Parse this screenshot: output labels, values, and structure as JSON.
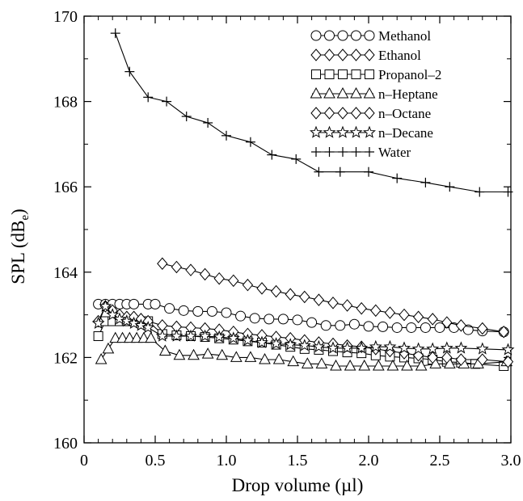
{
  "chart_data": {
    "type": "line",
    "title": "",
    "xlabel": "Drop volume (µl)",
    "ylabel_main": "SPL (dB",
    "ylabel_sub": "e",
    "ylabel_close": ")",
    "xlim": [
      0,
      3.0
    ],
    "ylim": [
      160,
      170
    ],
    "x_ticks": [
      0,
      0.5,
      1.0,
      1.5,
      2.0,
      2.5,
      3.0
    ],
    "x_tick_labels": [
      "0",
      "0.5",
      "1.0",
      "1.5",
      "2.0",
      "2.5",
      "3.0"
    ],
    "y_ticks": [
      160,
      162,
      164,
      166,
      168,
      170
    ],
    "y_tick_labels": [
      "160",
      "162",
      "164",
      "166",
      "168",
      "170"
    ],
    "grid": false,
    "legend_position": "top-right",
    "series": [
      {
        "name": "Methanol",
        "marker": "circle",
        "x": [
          0.1,
          0.15,
          0.2,
          0.25,
          0.3,
          0.35,
          0.45,
          0.5,
          0.6,
          0.7,
          0.8,
          0.9,
          1.0,
          1.1,
          1.2,
          1.3,
          1.4,
          1.5,
          1.6,
          1.7,
          1.8,
          1.9,
          2.0,
          2.1,
          2.2,
          2.3,
          2.4,
          2.5,
          2.6,
          2.7,
          2.8,
          2.95
        ],
        "y": [
          163.25,
          163.25,
          163.25,
          163.25,
          163.25,
          163.25,
          163.25,
          163.25,
          163.15,
          163.1,
          163.08,
          163.08,
          163.05,
          162.97,
          162.92,
          162.9,
          162.9,
          162.88,
          162.82,
          162.75,
          162.75,
          162.78,
          162.73,
          162.72,
          162.7,
          162.7,
          162.7,
          162.7,
          162.7,
          162.65,
          162.62,
          162.6
        ]
      },
      {
        "name": "Ethanol",
        "marker": "diamond",
        "x": [
          0.55,
          0.65,
          0.75,
          0.85,
          0.95,
          1.05,
          1.15,
          1.25,
          1.35,
          1.45,
          1.55,
          1.65,
          1.75,
          1.85,
          1.95,
          2.05,
          2.15,
          2.25,
          2.35,
          2.45,
          2.55,
          2.65,
          2.8,
          2.95
        ],
        "y": [
          164.2,
          164.12,
          164.05,
          163.95,
          163.85,
          163.8,
          163.7,
          163.62,
          163.55,
          163.48,
          163.42,
          163.35,
          163.28,
          163.22,
          163.15,
          163.1,
          163.05,
          163.0,
          162.95,
          162.9,
          162.82,
          162.75,
          162.68,
          162.6
        ]
      },
      {
        "name": "Propanol–2",
        "marker": "square",
        "x": [
          0.1,
          0.15,
          0.2,
          0.25,
          0.3,
          0.35,
          0.4,
          0.45,
          0.55,
          0.65,
          0.75,
          0.85,
          0.95,
          1.05,
          1.15,
          1.25,
          1.35,
          1.45,
          1.55,
          1.65,
          1.75,
          1.85,
          1.95,
          2.05,
          2.15,
          2.25,
          2.35,
          2.45,
          2.55,
          2.65,
          2.75,
          2.95
        ],
        "y": [
          162.5,
          162.85,
          162.85,
          162.85,
          162.85,
          162.85,
          162.85,
          162.85,
          162.55,
          162.52,
          162.5,
          162.48,
          162.45,
          162.42,
          162.38,
          162.35,
          162.3,
          162.25,
          162.2,
          162.18,
          162.15,
          162.12,
          162.1,
          162.05,
          162.02,
          162.0,
          161.98,
          161.95,
          161.9,
          161.88,
          161.85,
          161.8
        ]
      },
      {
        "name": "n–Heptane",
        "marker": "triangle",
        "x": [
          0.12,
          0.17,
          0.22,
          0.27,
          0.32,
          0.37,
          0.42,
          0.47,
          0.57,
          0.67,
          0.77,
          0.87,
          0.97,
          1.07,
          1.17,
          1.27,
          1.37,
          1.47,
          1.57,
          1.67,
          1.77,
          1.87,
          1.97,
          2.07,
          2.17,
          2.27,
          2.37,
          2.47,
          2.57,
          2.67,
          2.77,
          2.97
        ],
        "y": [
          161.95,
          162.2,
          162.45,
          162.45,
          162.45,
          162.45,
          162.45,
          162.45,
          162.15,
          162.05,
          162.05,
          162.08,
          162.05,
          162.0,
          162.0,
          161.95,
          161.95,
          161.9,
          161.85,
          161.85,
          161.8,
          161.8,
          161.8,
          161.8,
          161.8,
          161.8,
          161.8,
          161.85,
          161.85,
          161.85,
          161.85,
          161.9
        ]
      },
      {
        "name": "n–Octane",
        "marker": "diamond",
        "x": [
          0.1,
          0.15,
          0.2,
          0.25,
          0.3,
          0.35,
          0.4,
          0.45,
          0.55,
          0.65,
          0.75,
          0.85,
          0.95,
          1.05,
          1.15,
          1.25,
          1.35,
          1.45,
          1.55,
          1.65,
          1.75,
          1.85,
          1.95,
          2.05,
          2.15,
          2.25,
          2.35,
          2.45,
          2.55,
          2.65,
          2.8,
          2.98
        ],
        "y": [
          162.85,
          163.2,
          163.1,
          163.0,
          162.95,
          162.95,
          162.9,
          162.85,
          162.75,
          162.72,
          162.7,
          162.68,
          162.65,
          162.6,
          162.55,
          162.52,
          162.48,
          162.45,
          162.4,
          162.35,
          162.32,
          162.28,
          162.25,
          162.2,
          162.15,
          162.1,
          162.05,
          162.0,
          162.0,
          161.95,
          161.95,
          161.9
        ]
      },
      {
        "name": "n–Decane",
        "marker": "star",
        "x": [
          0.1,
          0.15,
          0.2,
          0.25,
          0.3,
          0.35,
          0.4,
          0.45,
          0.55,
          0.65,
          0.75,
          0.85,
          0.95,
          1.05,
          1.15,
          1.25,
          1.35,
          1.45,
          1.55,
          1.65,
          1.75,
          1.85,
          1.95,
          2.05,
          2.15,
          2.25,
          2.35,
          2.45,
          2.55,
          2.65,
          2.8,
          2.98
        ],
        "y": [
          162.8,
          163.2,
          163.0,
          162.9,
          162.85,
          162.8,
          162.75,
          162.7,
          162.5,
          162.5,
          162.5,
          162.5,
          162.48,
          162.45,
          162.4,
          162.35,
          162.32,
          162.3,
          162.28,
          162.25,
          162.22,
          162.22,
          162.22,
          162.25,
          162.25,
          162.22,
          162.2,
          162.2,
          162.22,
          162.22,
          162.2,
          162.18
        ]
      },
      {
        "name": "Water",
        "marker": "plus",
        "x": [
          0.22,
          0.32,
          0.45,
          0.58,
          0.72,
          0.87,
          1.0,
          1.17,
          1.32,
          1.49,
          1.65,
          1.8,
          2.0,
          2.2,
          2.4,
          2.57,
          2.78,
          2.98
        ],
        "y": [
          169.6,
          168.7,
          168.1,
          168.0,
          167.65,
          167.5,
          167.2,
          167.05,
          166.75,
          166.65,
          166.35,
          166.35,
          166.35,
          166.2,
          166.1,
          166.0,
          165.88,
          165.88
        ]
      }
    ]
  }
}
